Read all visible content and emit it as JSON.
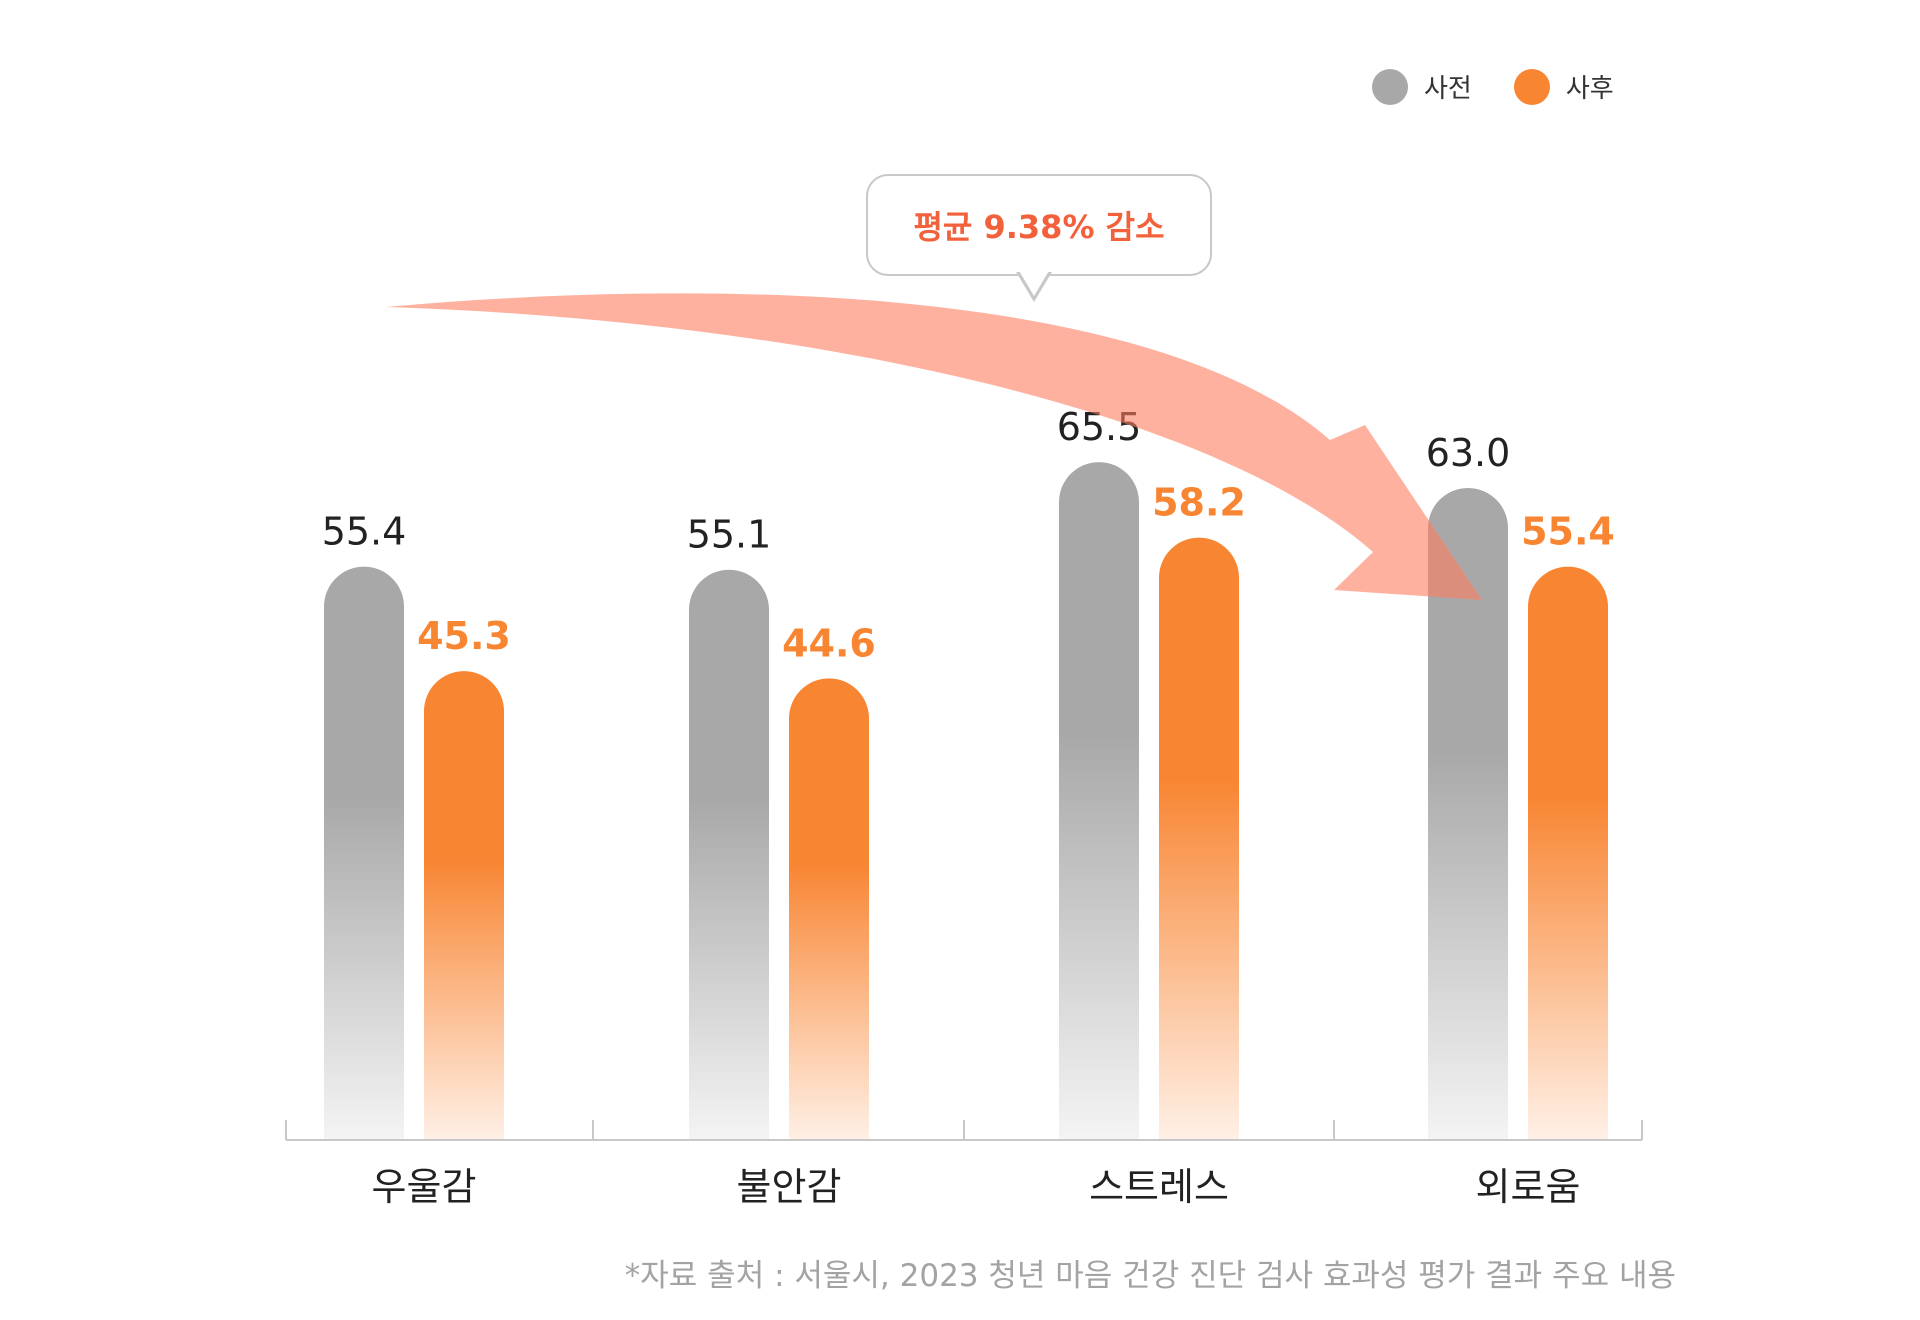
{
  "legend": {
    "items": [
      {
        "label": "사전",
        "color": "#a8a8a8"
      },
      {
        "label": "사후",
        "color": "#f88532"
      }
    ]
  },
  "callout": {
    "text": "평균 9.38% 감소"
  },
  "footnote": "*자료 출처 : 서울시, 2023 청년 마음 건강 진단 검사 효과성 평가 결과 주요 내용",
  "chart_data": {
    "type": "bar",
    "categories": [
      "우울감",
      "불안감",
      "스트레스",
      "외로움"
    ],
    "series": [
      {
        "name": "사전",
        "values": [
          55.4,
          55.1,
          65.5,
          63.0
        ],
        "labels": [
          "55.4",
          "55.1",
          "65.5",
          "63.0"
        ],
        "color": "#a8a8a8"
      },
      {
        "name": "사후",
        "values": [
          45.3,
          44.6,
          58.2,
          55.4
        ],
        "labels": [
          "45.3",
          "44.6",
          "58.2",
          "55.4"
        ],
        "color": "#f88532"
      }
    ],
    "xlabel": "",
    "ylabel": "",
    "ylim": [
      0,
      100
    ],
    "grid": false,
    "legend_position": "top-right"
  }
}
